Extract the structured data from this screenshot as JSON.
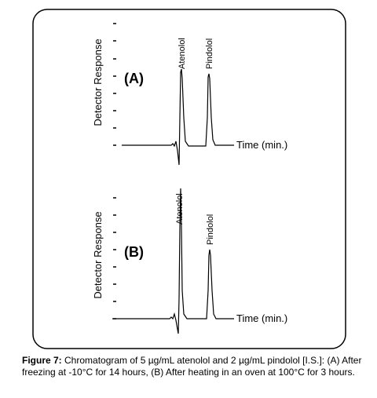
{
  "panels": [
    {
      "label": "(A)",
      "y_axis_label": "Detector Response",
      "x_axis_label": "Time (min.)",
      "peaks": [
        "Atenolol",
        "Pindolol"
      ]
    },
    {
      "label": "(B)",
      "y_axis_label": "Detector Response",
      "x_axis_label": "Time (min.)",
      "peaks": [
        "Atenolol",
        "Pindolol"
      ]
    }
  ],
  "caption": {
    "figure_label": "Figure 7:",
    "text": "Chromatogram of 5 µg/mL atenolol and 2 µg/mL pindolol [I.S.]: (A) After freezing at -10°C for 14 hours, (B) After heating in an oven at 100°C for 3 hours."
  }
}
